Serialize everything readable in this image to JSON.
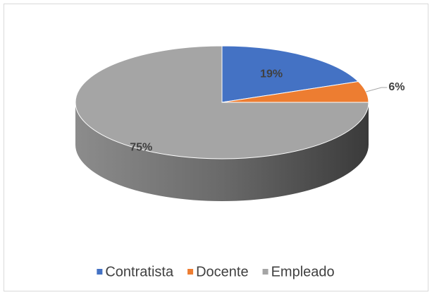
{
  "chart_data": {
    "type": "pie",
    "categories": [
      "Contratista",
      "Docente",
      "Empleado"
    ],
    "values": [
      19,
      6,
      75
    ],
    "value_labels": [
      "19%",
      "6%",
      "75%"
    ],
    "colors": [
      "#4472c4",
      "#ed7d31",
      "#a5a5a5"
    ],
    "legend": "bottom"
  }
}
